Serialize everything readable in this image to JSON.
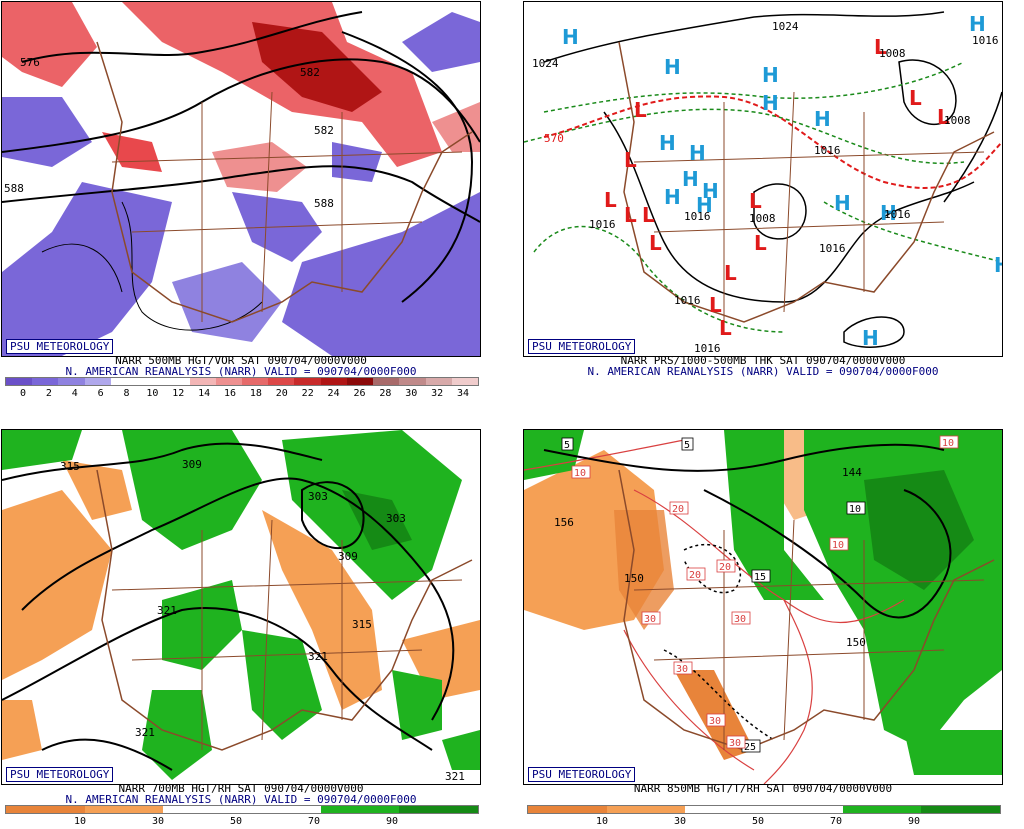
{
  "branding": "PSU METEOROLOGY",
  "reanalysis_caption": "N. AMERICAN REANALYSIS (NARR) VALID = 090704/0000F000",
  "colors": {
    "caption_blue": "#000080",
    "vort_low": "#7a67d8",
    "vort_high": "#e8484c",
    "dry": "#f5a055",
    "moist": "#1fb31f",
    "coast": "#8b4a2b",
    "high_marker": "#1e9ad6",
    "low_marker": "#e01a1a",
    "thickness_dash_green": "#1a8a1a",
    "thickness_dash_red": "#e01a1a",
    "temp_contour_red": "#d94040"
  },
  "panels": [
    {
      "title": "NARR 500MB HGT/VOR SAT 090704/0000V000",
      "colorbar_ticks": [
        "0",
        "2",
        "4",
        "6",
        "8",
        "10",
        "12",
        "14",
        "16",
        "18",
        "20",
        "22",
        "24",
        "26",
        "28",
        "30",
        "32",
        "34"
      ],
      "colorbar_colors": [
        "#6a50c8",
        "#7a67d8",
        "#8f82e0",
        "#b0a8ec",
        "#ffffff",
        "#ffffff",
        "#ffffff",
        "#f3b6b6",
        "#ee9090",
        "#e66a6a",
        "#dd4848",
        "#c82a2a",
        "#b01515",
        "#8c0a0a",
        "#a86a6a",
        "#c08a8a",
        "#d8aaaa",
        "#f0cccc"
      ],
      "labels": [
        "576",
        "582",
        "588",
        "582",
        "588"
      ]
    },
    {
      "title": "NARR PRS/1000-500MB THK SAT 090704/0000V000",
      "labels": [
        "1024",
        "1024",
        "570",
        "1016",
        "1016",
        "1016",
        "1016",
        "1016",
        "1016",
        "1016",
        "1008",
        "1008",
        "1008",
        "1016"
      ],
      "highs": 16,
      "lows": 14
    },
    {
      "title": "NARR 700MB HGT/RH SAT 090704/0000V000",
      "colorbar_ticks": [
        "10",
        "30",
        "50",
        "70",
        "90"
      ],
      "labels": [
        "315",
        "309",
        "303",
        "303",
        "309",
        "315",
        "321",
        "321",
        "321",
        "321"
      ]
    },
    {
      "title": "NARR 850MB HGT/T/RH SAT 090704/0000V000",
      "colorbar_ticks": [
        "10",
        "30",
        "50",
        "70",
        "90"
      ],
      "labels": [
        "5",
        "5",
        "10",
        "10",
        "10",
        "20",
        "20",
        "20",
        "15",
        "30",
        "30",
        "30",
        "30",
        "25",
        "30",
        "10",
        "156",
        "150",
        "144",
        "5",
        "150"
      ]
    }
  ]
}
